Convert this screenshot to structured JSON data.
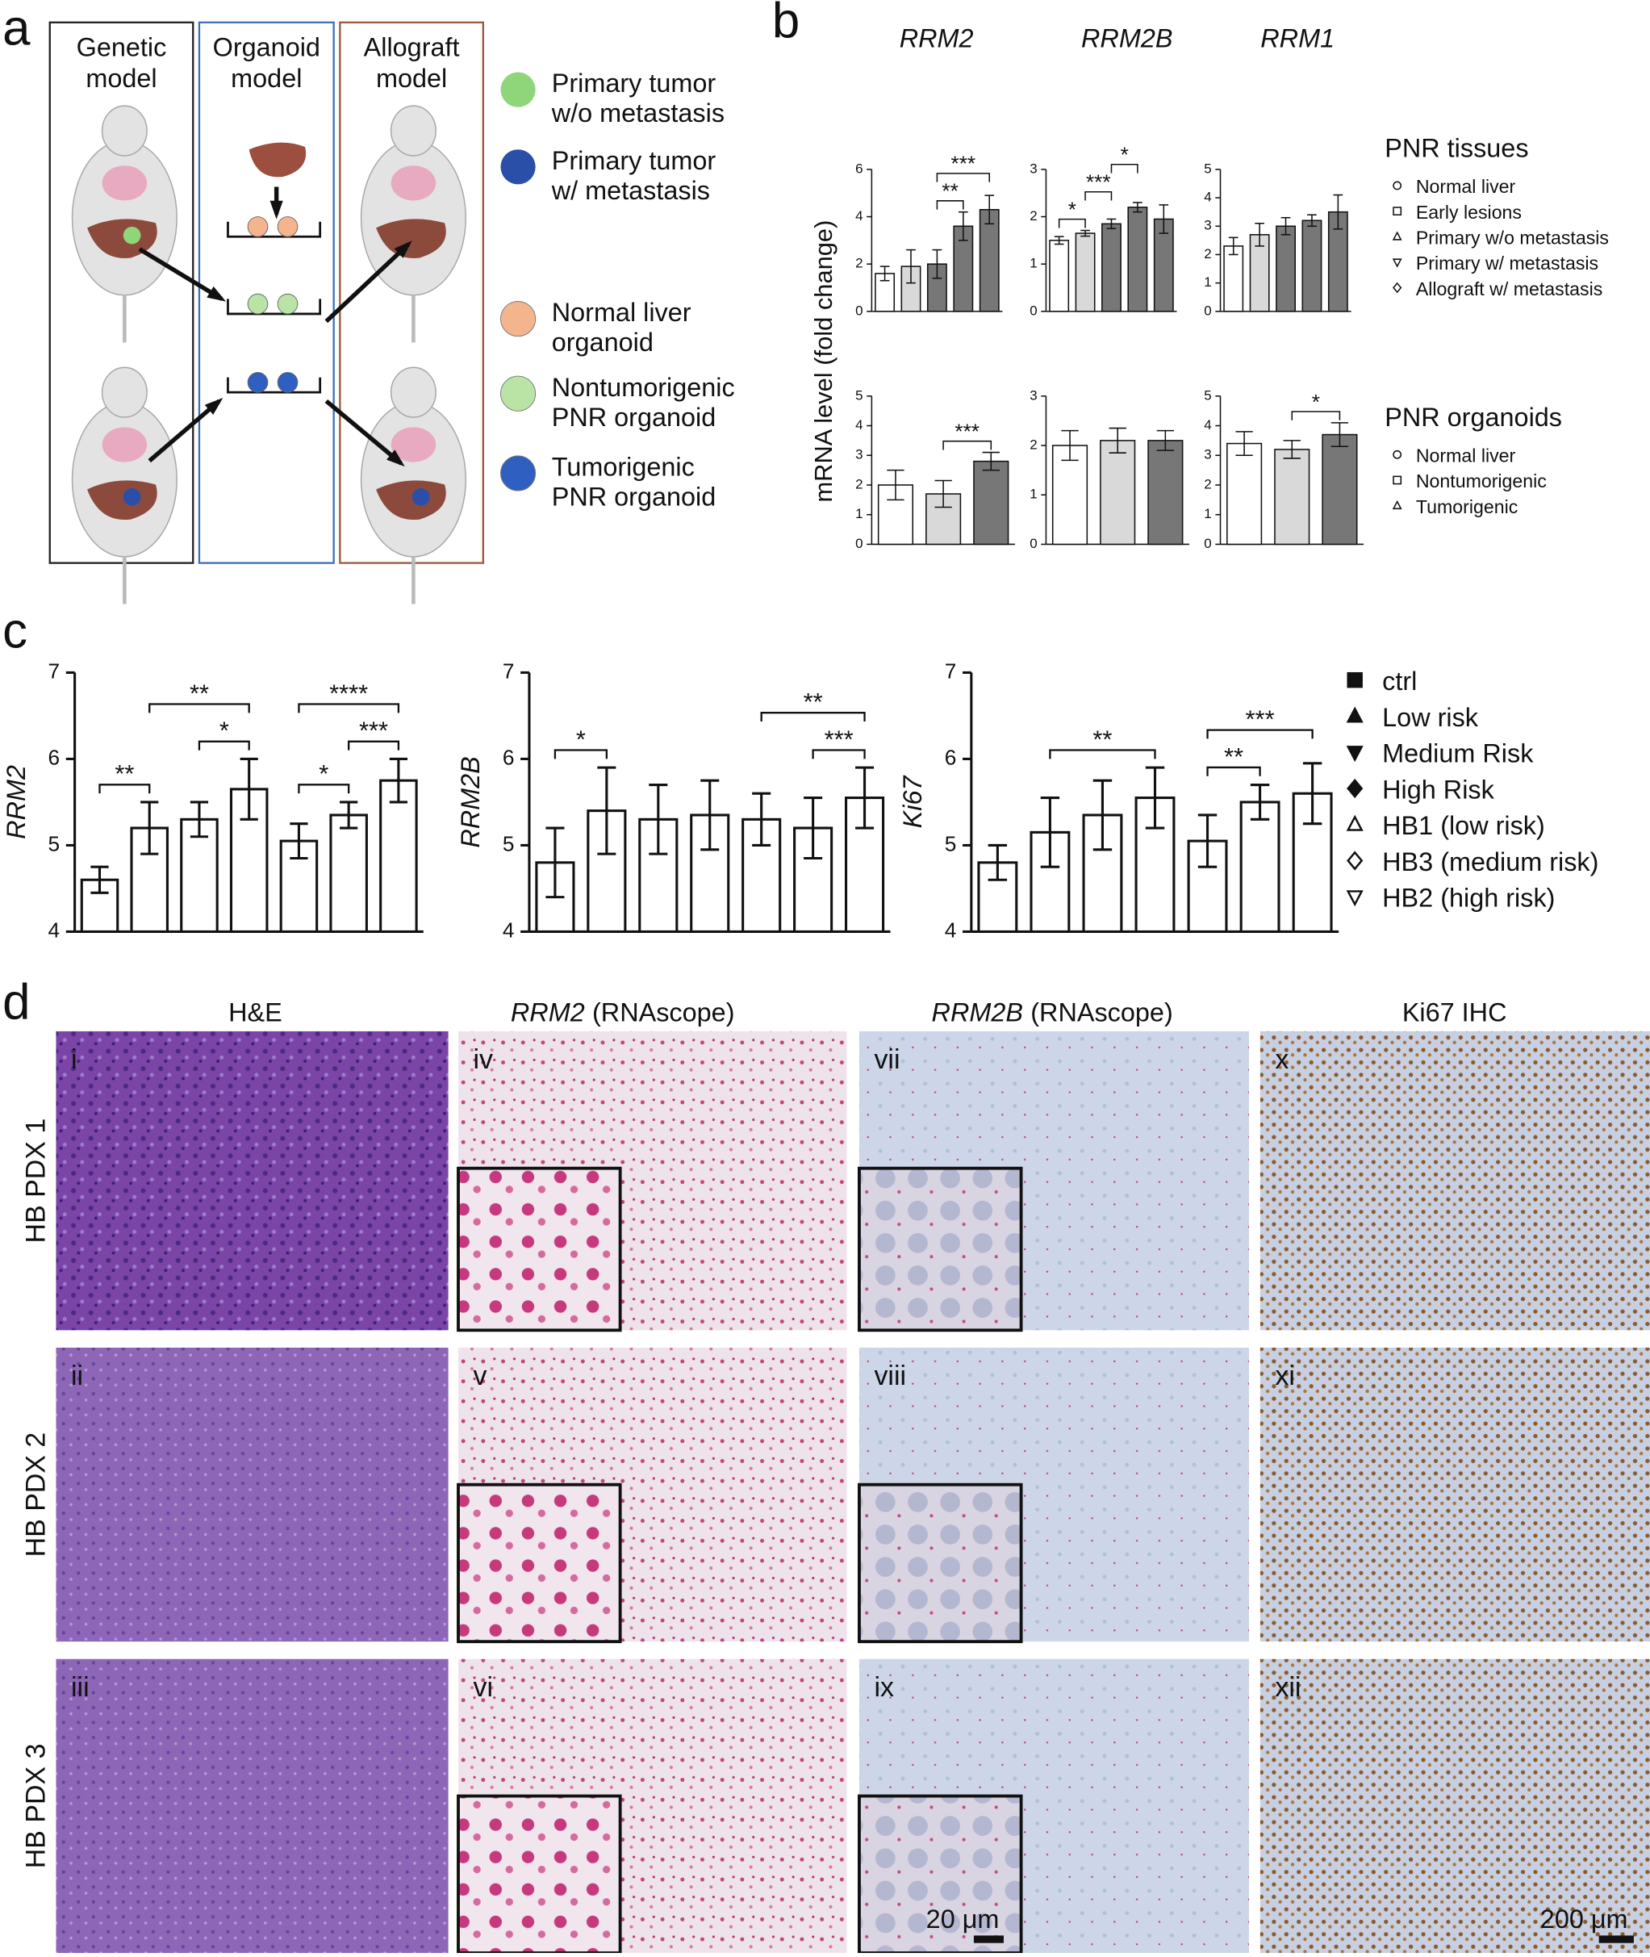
{
  "panel_labels": [
    "a",
    "b",
    "c",
    "d"
  ],
  "panel_a": {
    "boxes": [
      [
        "Genetic",
        "model"
      ],
      [
        "Organoid",
        "model"
      ],
      [
        "Allograft",
        "model"
      ]
    ],
    "legend": [
      {
        "lines": [
          "Primary tumor",
          "w/o metastasis"
        ],
        "color": "#8fd67a"
      },
      {
        "lines": [
          "Primary tumor",
          "w/ metastasis"
        ],
        "color": "#2a4fa8"
      },
      {
        "lines": [
          "Normal liver",
          "organoid"
        ],
        "color": "#f4b48e"
      },
      {
        "lines": [
          "Nontumorigenic",
          "PNR organoid"
        ],
        "color": "#b9e4a6"
      },
      {
        "lines": [
          "Tumorigenic",
          "PNR organoid"
        ],
        "color": "#2f5fc0"
      }
    ]
  },
  "panel_b": {
    "genes": [
      "RRM2",
      "RRM2B",
      "RRM1"
    ],
    "ylabel": "mRNA level (fold change)",
    "legends": [
      {
        "title": "PNR tissues",
        "items": [
          {
            "name": "Normal liver",
            "marker": "circle"
          },
          {
            "name": "Early lesions",
            "marker": "square"
          },
          {
            "name": "Primary w/o metastasis",
            "marker": "triangle"
          },
          {
            "name": "Primary w/ metastasis",
            "marker": "triangle-down"
          },
          {
            "name": "Allograft w/ metastasis",
            "marker": "diamond"
          }
        ]
      },
      {
        "title": "PNR organoids",
        "items": [
          {
            "name": "Normal liver",
            "marker": "circle"
          },
          {
            "name": "Nontumorigenic",
            "marker": "square"
          },
          {
            "name": "Tumorigenic",
            "marker": "triangle"
          }
        ]
      }
    ]
  },
  "panel_c": {
    "groups": [
      {
        "name": "ctrl",
        "marker": "square",
        "filled": true
      },
      {
        "name": "Low risk",
        "marker": "triangle",
        "filled": true
      },
      {
        "name": "Medium Risk",
        "marker": "triangle-down",
        "filled": true
      },
      {
        "name": "High Risk",
        "marker": "diamond",
        "filled": true
      },
      {
        "name": "HB1 (low risk)",
        "marker": "triangle",
        "filled": false
      },
      {
        "name": "HB3 (medium risk)",
        "marker": "diamond",
        "filled": false
      },
      {
        "name": "HB2 (high risk)",
        "marker": "triangle-down",
        "filled": false
      }
    ]
  },
  "chart_data": [
    {
      "type": "bar",
      "ylim": [
        0,
        6
      ],
      "yticks": [
        0,
        2,
        4,
        6
      ],
      "values": [
        1.6,
        1.9,
        2.0,
        3.6,
        4.3
      ],
      "errors": [
        0.3,
        0.7,
        0.6,
        0.6,
        0.6
      ],
      "colors": [
        "#ffffff",
        "#d9d9d9",
        "#777777",
        "#777777",
        "#777777"
      ],
      "annotations": [
        {
          "text": "**",
          "from": 2,
          "to": 3
        },
        {
          "text": "***",
          "from": 2,
          "to": 4
        }
      ]
    },
    {
      "type": "bar",
      "ylim": [
        0,
        3
      ],
      "yticks": [
        0,
        1,
        2,
        3
      ],
      "values": [
        1.5,
        1.65,
        1.85,
        2.2,
        1.95
      ],
      "errors": [
        0.08,
        0.06,
        0.1,
        0.1,
        0.3
      ],
      "colors": [
        "#ffffff",
        "#d9d9d9",
        "#777777",
        "#777777",
        "#777777"
      ],
      "annotations": [
        {
          "text": "*",
          "from": 0,
          "to": 1
        },
        {
          "text": "***",
          "from": 1,
          "to": 2
        },
        {
          "text": "*",
          "from": 2,
          "to": 3
        }
      ]
    },
    {
      "type": "bar",
      "ylim": [
        0,
        5
      ],
      "yticks": [
        0,
        1,
        2,
        3,
        4,
        5
      ],
      "values": [
        2.3,
        2.7,
        3.0,
        3.2,
        3.5
      ],
      "errors": [
        0.3,
        0.4,
        0.3,
        0.2,
        0.6
      ],
      "colors": [
        "#ffffff",
        "#d9d9d9",
        "#777777",
        "#777777",
        "#777777"
      ],
      "annotations": []
    },
    {
      "type": "bar",
      "ylim": [
        0,
        5
      ],
      "yticks": [
        0,
        1,
        2,
        3,
        4,
        5
      ],
      "values": [
        2.0,
        1.7,
        2.8
      ],
      "errors": [
        0.5,
        0.45,
        0.3
      ],
      "colors": [
        "#ffffff",
        "#d9d9d9",
        "#777777"
      ],
      "annotations": [
        {
          "text": "***",
          "from": 1,
          "to": 2
        }
      ]
    },
    {
      "type": "bar",
      "ylim": [
        0,
        3
      ],
      "yticks": [
        0,
        1,
        2,
        3
      ],
      "values": [
        2.0,
        2.1,
        2.1
      ],
      "errors": [
        0.3,
        0.25,
        0.2
      ],
      "colors": [
        "#ffffff",
        "#d9d9d9",
        "#777777"
      ],
      "annotations": []
    },
    {
      "type": "bar",
      "ylim": [
        0,
        5
      ],
      "yticks": [
        0,
        1,
        2,
        3,
        4,
        5
      ],
      "values": [
        3.4,
        3.2,
        3.7
      ],
      "errors": [
        0.4,
        0.3,
        0.4
      ],
      "colors": [
        "#ffffff",
        "#d9d9d9",
        "#777777"
      ],
      "annotations": [
        {
          "text": "*",
          "from": 1,
          "to": 2
        }
      ]
    },
    {
      "type": "bar",
      "ylabel": "RRM2",
      "ylim": [
        4,
        7
      ],
      "yticks": [
        4,
        5,
        6,
        7
      ],
      "values": [
        4.6,
        5.2,
        5.3,
        5.65,
        5.05,
        5.35,
        5.75
      ],
      "errors": [
        0.15,
        0.3,
        0.2,
        0.35,
        0.2,
        0.15,
        0.25
      ],
      "annotations": [
        {
          "text": "**",
          "from": 0,
          "to": 1
        },
        {
          "text": "*",
          "from": 2,
          "to": 3
        },
        {
          "text": "**",
          "from": 1,
          "to": 3
        },
        {
          "text": "*",
          "from": 4,
          "to": 5
        },
        {
          "text": "***",
          "from": 5,
          "to": 6
        },
        {
          "text": "****",
          "from": 4,
          "to": 6
        }
      ]
    },
    {
      "type": "bar",
      "ylabel": "RRM2B",
      "ylim": [
        4,
        7
      ],
      "yticks": [
        4,
        5,
        6,
        7
      ],
      "values": [
        4.8,
        5.4,
        5.3,
        5.35,
        5.3,
        5.2,
        5.55
      ],
      "errors": [
        0.4,
        0.5,
        0.4,
        0.4,
        0.3,
        0.35,
        0.35
      ],
      "annotations": [
        {
          "text": "*",
          "from": 0,
          "to": 1
        },
        {
          "text": "***",
          "from": 5,
          "to": 6
        },
        {
          "text": "**",
          "from": 4,
          "to": 6
        }
      ]
    },
    {
      "type": "bar",
      "ylabel": "Ki67",
      "ylim": [
        4,
        7
      ],
      "yticks": [
        4,
        5,
        6,
        7
      ],
      "values": [
        4.8,
        5.15,
        5.35,
        5.55,
        5.05,
        5.5,
        5.6
      ],
      "errors": [
        0.2,
        0.4,
        0.4,
        0.35,
        0.3,
        0.2,
        0.35
      ],
      "annotations": [
        {
          "text": "**",
          "from": 4,
          "to": 5
        },
        {
          "text": "**",
          "from": 1,
          "to": 3
        },
        {
          "text": "***",
          "from": 4,
          "to": 6
        }
      ]
    }
  ],
  "panel_d": {
    "columns": [
      [
        "H&E"
      ],
      [
        "RRM2",
        "(RNAscope)"
      ],
      [
        "RRM2B",
        "(RNAscope)"
      ],
      [
        "Ki67 IHC"
      ]
    ],
    "rows": [
      "HB PDX 1",
      "HB PDX 2",
      "HB PDX 3"
    ],
    "labels": [
      [
        "i",
        "iv",
        "vii",
        "x"
      ],
      [
        "ii",
        "v",
        "viii",
        "xi"
      ],
      [
        "iii",
        "vi",
        "ix",
        "xii"
      ]
    ],
    "scale_bars": [
      "20 μm",
      "200 μm"
    ]
  }
}
